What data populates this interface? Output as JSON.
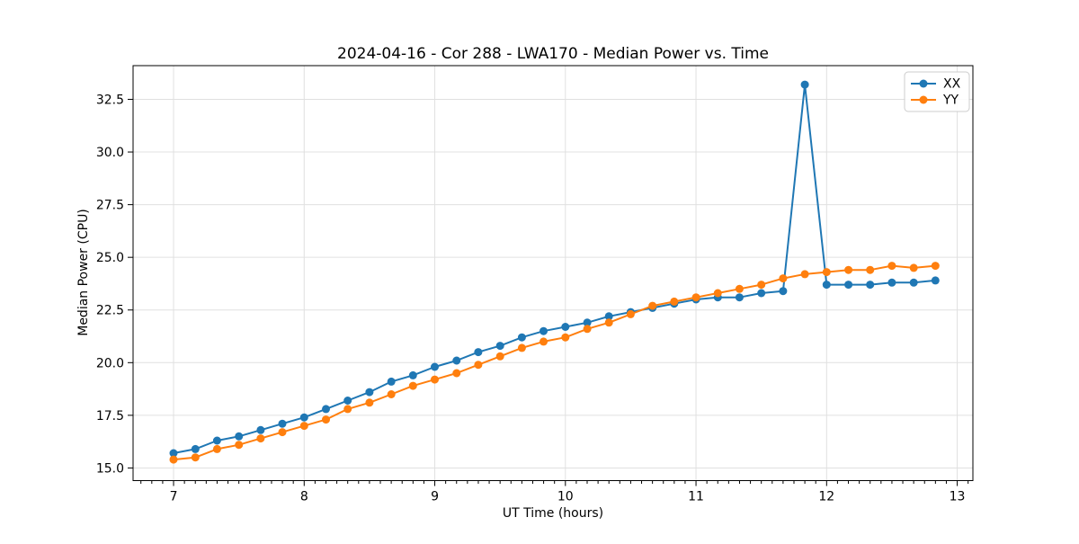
{
  "figure": {
    "title": "2024-04-16 - Cor 288 - LWA170 - Median Power vs. Time",
    "xlabel": "UT Time (hours)",
    "ylabel": "Median Power (CPU)"
  },
  "legend": {
    "position": "upper right",
    "items": [
      {
        "label": "XX",
        "color": "#1f77b4"
      },
      {
        "label": "YY",
        "color": "#ff7f0e"
      }
    ]
  },
  "chart_data": {
    "type": "line",
    "title": "2024-04-16 - Cor 288 - LWA170 - Median Power vs. Time",
    "xlabel": "UT Time (hours)",
    "ylabel": "Median Power (CPU)",
    "x": [
      7.0,
      7.167,
      7.333,
      7.5,
      7.667,
      7.833,
      8.0,
      8.167,
      8.333,
      8.5,
      8.667,
      8.833,
      9.0,
      9.167,
      9.333,
      9.5,
      9.667,
      9.833,
      10.0,
      10.167,
      10.333,
      10.5,
      10.667,
      10.833,
      11.0,
      11.167,
      11.333,
      11.5,
      11.667,
      11.833,
      12.0,
      12.167,
      12.333,
      12.5,
      12.667,
      12.833
    ],
    "series": [
      {
        "name": "XX",
        "color": "#1f77b4",
        "marker": "circle",
        "values": [
          15.7,
          15.9,
          16.3,
          16.5,
          16.8,
          17.1,
          17.4,
          17.8,
          18.2,
          18.6,
          19.1,
          19.4,
          19.8,
          20.1,
          20.5,
          20.8,
          21.2,
          21.5,
          21.7,
          21.9,
          22.2,
          22.4,
          22.6,
          22.8,
          23.0,
          23.1,
          23.1,
          23.3,
          23.4,
          33.2,
          23.7,
          23.7,
          23.7,
          23.8,
          23.8,
          23.9
        ]
      },
      {
        "name": "YY",
        "color": "#ff7f0e",
        "marker": "circle",
        "values": [
          15.4,
          15.5,
          15.9,
          16.1,
          16.4,
          16.7,
          17.0,
          17.3,
          17.8,
          18.1,
          18.5,
          18.9,
          19.2,
          19.5,
          19.9,
          20.3,
          20.7,
          21.0,
          21.2,
          21.6,
          21.9,
          22.3,
          22.7,
          22.9,
          23.1,
          23.3,
          23.5,
          23.7,
          24.0,
          24.2,
          24.3,
          24.4,
          24.4,
          24.6,
          24.5,
          24.6
        ]
      }
    ],
    "xlim": [
      6.69,
      13.12
    ],
    "ylim": [
      14.4,
      34.1
    ],
    "xticks": [
      7,
      8,
      9,
      10,
      11,
      12,
      13
    ],
    "yticks": [
      15.0,
      17.5,
      20.0,
      22.5,
      25.0,
      27.5,
      30.0,
      32.5
    ],
    "x_minor_step": 0.083333,
    "grid": true,
    "legend_position": "upper right"
  }
}
